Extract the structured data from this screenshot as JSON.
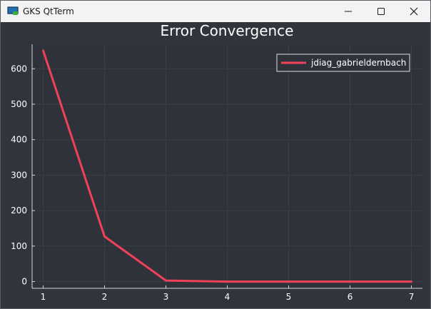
{
  "window": {
    "title": "GKS QtTerm",
    "icon": "gks-app-icon",
    "controls": [
      "minimize-icon",
      "maximize-icon",
      "close-icon"
    ]
  },
  "colors": {
    "background": "#30343c",
    "plot_area": "#2f323a",
    "series": "#ef4259",
    "grid": "#3b3f47",
    "text": "#ffffff"
  },
  "chart_data": {
    "type": "line",
    "title": "Error Convergence",
    "xlabel": "",
    "ylabel": "",
    "x": [
      1,
      2,
      3,
      4,
      5,
      6,
      7
    ],
    "series": [
      {
        "name": "jdiag_gabrieldernbach",
        "values": [
          651,
          127,
          3,
          0,
          0,
          0,
          0
        ],
        "color": "#ef4259"
      }
    ],
    "xticks": [
      1,
      2,
      3,
      4,
      5,
      6,
      7
    ],
    "yticks": [
      0,
      100,
      200,
      300,
      400,
      500,
      600
    ],
    "xlim": [
      0.82,
      7.18
    ],
    "ylim": [
      -19,
      669
    ],
    "grid": true,
    "legend_position": "top-right"
  }
}
